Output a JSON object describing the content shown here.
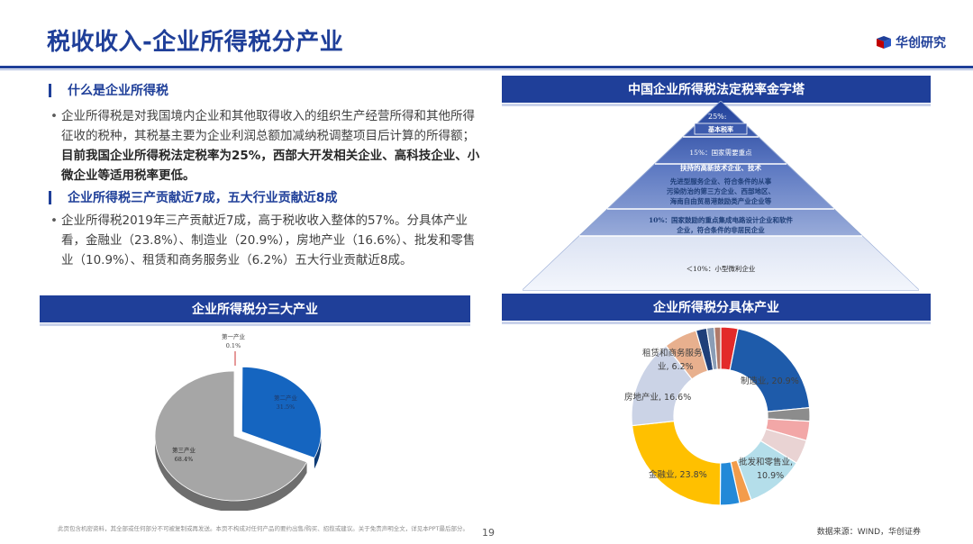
{
  "header": {
    "title": "税收收入-企业所得税分产业",
    "brand": "华创研究"
  },
  "sections": [
    {
      "heading": "什么是企业所得税",
      "text_normal": "企业所得税是对我国境内企业和其他取得收入的组织生产经营所得和其他所得征收的税种，其税基主要为企业利润总额加减纳税调整项目后计算的所得额；",
      "text_bold": "目前我国企业所得税法定税率为25%，西部大开发相关企业、高科技企业、小微企业等适用税率更低。"
    },
    {
      "heading": "企业所得税三产贡献近7成，五大行业贡献近8成",
      "text": "企业所得税2019年三产贡献近7成，高于税收收入整体的57%。分具体产业看，金融业（23.8%）、制造业（20.9%），房地产业（16.6%）、批发和零售业（10.9%）、租赁和商务服务业（6.2%）五大行业贡献近8成。"
    }
  ],
  "pyramid": {
    "title": "中国企业所得税法定税率金字塔",
    "tier1_rate": "25%:",
    "tier1_desc": "基本税率",
    "tier2_lines": [
      "15%：国家需要重点",
      "扶持的高新技术企业、技术",
      "先进型服务企业、符合条件的从事",
      "污染防治的第三方企业、西部地区、",
      "海南自由贸易港鼓励类产业企业等"
    ],
    "tier3_lines": [
      "10%：国家鼓励的重点集成电路设计企业和软件",
      "企业，符合条件的非居民企业"
    ],
    "tier4_line": "＜10%：小型微利企业"
  },
  "chart_titles": {
    "pie": "企业所得税分三大产业",
    "donut": "企业所得税分具体产业"
  },
  "chart_data": [
    {
      "type": "pie",
      "categories": [
        "第一产业",
        "第二产业",
        "第三产业"
      ],
      "values": [
        0.1,
        31.5,
        68.4
      ],
      "labels": [
        "0.1%",
        "31.5%",
        "68.4%"
      ],
      "colors": [
        "#C00000",
        "#1565C0",
        "#A6A6A6"
      ]
    },
    {
      "type": "pie",
      "style": "donut",
      "series": [
        {
          "label": "",
          "value": 3.2,
          "color": "#E32A2A"
        },
        {
          "label": "制造业, 20.9%",
          "value": 20.9,
          "color": "#1E5BAA"
        },
        {
          "label": "",
          "value": 2.5,
          "color": "#8C8C8C"
        },
        {
          "label": "",
          "value": 3.6,
          "color": "#F2A7A7"
        },
        {
          "label": "",
          "value": 4.5,
          "color": "#E9D3D3"
        },
        {
          "label": "批发和零售业, 10.9%",
          "value": 10.9,
          "color": "#B4DEEA"
        },
        {
          "label": "",
          "value": 2.2,
          "color": "#F39C4B"
        },
        {
          "label": "",
          "value": 3.6,
          "color": "#2389D8"
        },
        {
          "label": "金融业, 23.8%",
          "value": 23.8,
          "color": "#FFC000"
        },
        {
          "label": "房地产业, 16.6%",
          "value": 16.6,
          "color": "#CBD3E6"
        },
        {
          "label": "租赁和商务服务业, 6.2%",
          "value": 6.2,
          "color": "#E8B08E"
        },
        {
          "label": "",
          "value": 2.0,
          "color": "#1F3F79"
        },
        {
          "label": "",
          "value": 1.4,
          "color": "#8A9DB6"
        },
        {
          "label": "",
          "value": 1.2,
          "color": "#B07A6A"
        }
      ]
    }
  ],
  "footer": {
    "disclaimer": "此页包含机密资料，其全部或任何部分不可被复制或再发送。本页不构成对任何产品的要约出售/购买、招揽或建议。关于免责声明全文，详见本PPT最后部分。",
    "page": "19",
    "source": "数据来源：WIND，华创证券"
  }
}
